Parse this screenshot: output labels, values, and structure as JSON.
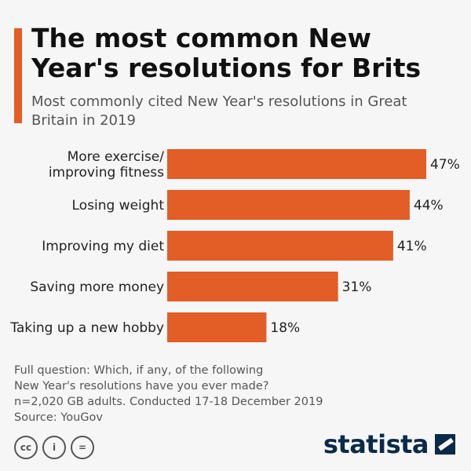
{
  "header": {
    "title": "The most common New Year's resolutions for Brits",
    "subtitle": "Most commonly cited New Year's resolutions in Great Britain in 2019"
  },
  "colors": {
    "accent": "#e35d27",
    "bar": "#e35d27",
    "logo": "#0b2a4a",
    "background": "#f6f6f6"
  },
  "chart_data": {
    "type": "bar",
    "orientation": "horizontal",
    "categories": [
      [
        "More exercise/",
        "improving fitness"
      ],
      [
        "Losing weight"
      ],
      [
        "Improving my diet"
      ],
      [
        "Saving more money"
      ],
      [
        "Taking up a new hobby"
      ]
    ],
    "values": [
      47,
      44,
      41,
      31,
      18
    ],
    "value_labels": [
      "47%",
      "44%",
      "41%",
      "31%",
      "18%"
    ],
    "xlim": [
      0,
      47
    ],
    "grid": false,
    "legend": "none"
  },
  "footnote": {
    "lines": [
      "Full question: Which, if any, of the following",
      "New Year's resolutions have you ever made?",
      "n=2,020 GB adults. Conducted 17-18 December 2019",
      "Source: YouGov"
    ]
  },
  "license_icons": [
    {
      "icon": "cc-icon",
      "glyph": "cc"
    },
    {
      "icon": "by-icon",
      "glyph": "i"
    },
    {
      "icon": "nd-icon",
      "glyph": "="
    }
  ],
  "brand": {
    "name": "statista"
  }
}
